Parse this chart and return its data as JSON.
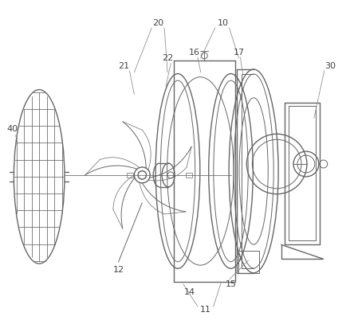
{
  "bg_color": "#ffffff",
  "line_color": "#666666",
  "line_width": 1.0,
  "thin_line": 0.7,
  "label_color": "#444444",
  "label_fs": 8.0,
  "figsize": [
    4.44,
    4.12
  ],
  "dpi": 100
}
